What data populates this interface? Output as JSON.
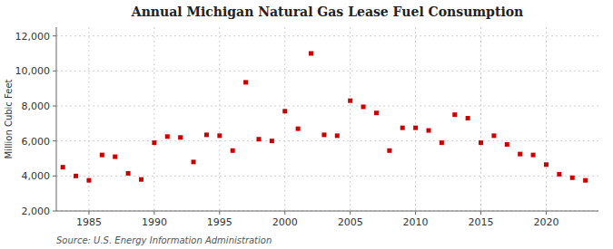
{
  "chart_data": {
    "type": "scatter",
    "title": "Annual Michigan Natural Gas Lease Fuel Consumption",
    "ylabel": "Million Cubic Feet",
    "source": "Source: U.S. Energy Information Administration",
    "color": "#cc0000",
    "marker": "square",
    "grid": true,
    "xlim": [
      1982.5,
      2024
    ],
    "ylim": [
      2000,
      12500
    ],
    "xticks": [
      1985,
      1990,
      1995,
      2000,
      2005,
      2010,
      2015,
      2020
    ],
    "yticks": [
      {
        "value": 2000,
        "label": "2,000"
      },
      {
        "value": 4000,
        "label": "4,000"
      },
      {
        "value": 6000,
        "label": "6,000"
      },
      {
        "value": 8000,
        "label": "8,000"
      },
      {
        "value": 10000,
        "label": "10,000"
      },
      {
        "value": 12000,
        "label": "12,000"
      }
    ],
    "x": [
      1983,
      1984,
      1985,
      1986,
      1987,
      1988,
      1989,
      1990,
      1991,
      1992,
      1993,
      1994,
      1995,
      1996,
      1997,
      1998,
      1999,
      2000,
      2001,
      2002,
      2003,
      2004,
      2005,
      2006,
      2007,
      2008,
      2009,
      2010,
      2011,
      2012,
      2013,
      2014,
      2015,
      2016,
      2017,
      2018,
      2019,
      2020,
      2021,
      2022,
      2023
    ],
    "values": [
      4500,
      4000,
      3750,
      5200,
      5100,
      4150,
      3800,
      5900,
      6250,
      6200,
      4800,
      6350,
      6300,
      5450,
      9350,
      6100,
      6000,
      7700,
      6700,
      11000,
      6350,
      6300,
      8300,
      7950,
      7600,
      5450,
      6750,
      6750,
      6600,
      5900,
      7500,
      7300,
      5900,
      6300,
      5800,
      5250,
      5200,
      4650,
      4100,
      3900,
      3750
    ]
  }
}
